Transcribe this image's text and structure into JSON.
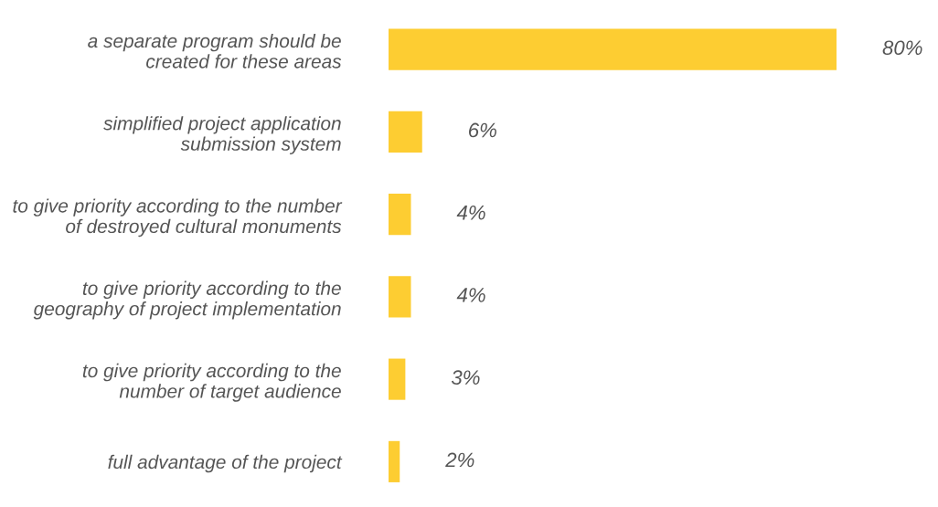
{
  "chart_data": {
    "type": "bar",
    "orientation": "horizontal",
    "categories": [
      "a separate program should be\ncreated for these areas",
      "simplified project application\nsubmission system",
      "to give priority according to the number\nof destroyed cultural monuments",
      "to give priority according to the\ngeography of project implementation",
      "to give priority according to the\nnumber of target audience",
      "full advantage of the project"
    ],
    "values": [
      80,
      6,
      4,
      4,
      3,
      2
    ],
    "value_labels": [
      "80%",
      "6%",
      "4%",
      "4%",
      "3%",
      "2%"
    ],
    "color": "#fdcd32",
    "grid": false,
    "legend": false,
    "tick_labels": "y"
  }
}
